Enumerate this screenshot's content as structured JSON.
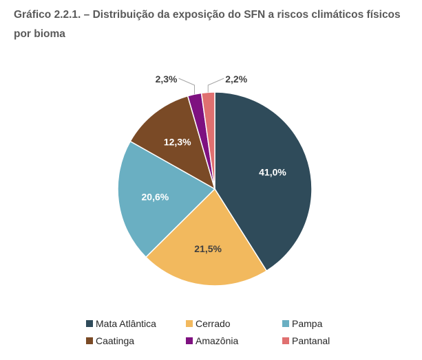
{
  "title": "Gráfico 2.2.1. – Distribuição da exposição do SFN a riscos climáticos físicos por bioma",
  "chart_data": {
    "type": "pie",
    "title": "Gráfico 2.2.1. – Distribuição da exposição do SFN a riscos climáticos físicos por bioma",
    "legend_position": "bottom",
    "slices": [
      {
        "label": "Mata Atlântica",
        "value": 41.0,
        "display": "41,0%",
        "color": "#2f4b5a",
        "label_color": "#ffffff",
        "label_placement": "inside"
      },
      {
        "label": "Cerrado",
        "value": 21.5,
        "display": "21,5%",
        "color": "#f2b95e",
        "label_color": "#404040",
        "label_placement": "inside"
      },
      {
        "label": "Pampa",
        "value": 20.6,
        "display": "20,6%",
        "color": "#6aafc2",
        "label_color": "#ffffff",
        "label_placement": "inside"
      },
      {
        "label": "Caatinga",
        "value": 12.3,
        "display": "12,3%",
        "color": "#7a4a26",
        "label_color": "#ffffff",
        "label_placement": "inside"
      },
      {
        "label": "Amazônia",
        "value": 2.3,
        "display": "2,3%",
        "color": "#7e1180",
        "label_color": "#404040",
        "label_placement": "outside"
      },
      {
        "label": "Pantanal",
        "value": 2.2,
        "display": "2,2%",
        "color": "#e07070",
        "label_color": "#404040",
        "label_placement": "outside"
      }
    ]
  }
}
